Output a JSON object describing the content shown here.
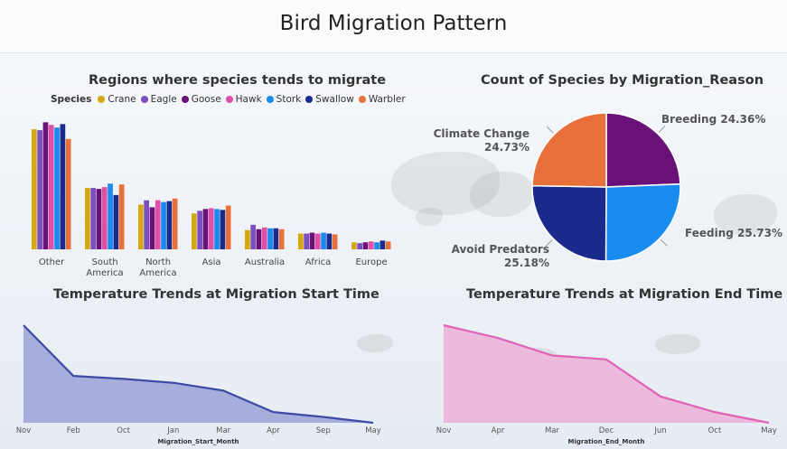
{
  "dashboard_title": "Bird Migration Pattern",
  "colors": {
    "Crane": "#d4a80e",
    "Eagle": "#7b4fbf",
    "Goose": "#6a1178",
    "Hawk": "#e04ea6",
    "Stork": "#1a8cf0",
    "Swallow": "#1a2a8c",
    "Warbler": "#e8703a",
    "area_start_fill": "#a7aedb",
    "area_start_line": "#3e4ba6",
    "area_end_fill": "#ebbadd",
    "area_end_line": "#e063b8"
  },
  "chart_data": [
    {
      "type": "bar",
      "title": "Regions where species tends to migrate",
      "legend_title": "Species",
      "categories": [
        "Other",
        "South America",
        "North America",
        "Asia",
        "Australia",
        "Africa",
        "Europe"
      ],
      "category_lines": [
        [
          "Other"
        ],
        [
          "South",
          "America"
        ],
        [
          "North",
          "America"
        ],
        [
          "Asia"
        ],
        [
          "Australia"
        ],
        [
          "Africa"
        ],
        [
          "Europe"
        ]
      ],
      "series": [
        {
          "name": "Crane",
          "values": [
            137,
            70,
            51,
            41,
            22,
            18,
            8
          ]
        },
        {
          "name": "Eagle",
          "values": [
            136,
            70,
            56,
            44,
            28,
            18,
            7
          ]
        },
        {
          "name": "Goose",
          "values": [
            145,
            69,
            48,
            46,
            23,
            19,
            8
          ]
        },
        {
          "name": "Hawk",
          "values": [
            142,
            71,
            56,
            47,
            25,
            18,
            9
          ]
        },
        {
          "name": "Stork",
          "values": [
            139,
            75,
            54,
            46,
            24,
            19,
            8
          ]
        },
        {
          "name": "Swallow",
          "values": [
            143,
            62,
            55,
            45,
            24,
            18,
            10
          ]
        },
        {
          "name": "Warbler",
          "values": [
            126,
            74,
            58,
            50,
            23,
            17,
            9
          ]
        }
      ],
      "ylim": [
        0,
        150
      ],
      "legend_position": "top"
    },
    {
      "type": "pie",
      "title": "Count of Species by Migration_Reason",
      "slices": [
        {
          "label": "Breeding",
          "value": 24.36,
          "pct_label": "24.36%",
          "color": "#6a1178"
        },
        {
          "label": "Feeding",
          "value": 25.73,
          "pct_label": "25.73%",
          "color": "#1a8cf0"
        },
        {
          "label": "Avoid Predators",
          "value": 25.18,
          "pct_label": "25.18%",
          "color": "#1a2a8c"
        },
        {
          "label": "Climate Change",
          "value": 24.73,
          "pct_label": "24.73%",
          "color": "#e8703a"
        }
      ]
    },
    {
      "type": "area",
      "title": "Temperature Trends at Migration Start Time",
      "xlabel": "Migration_Start_Month",
      "categories": [
        "Nov",
        "Feb",
        "Oct",
        "Jan",
        "Mar",
        "Apr",
        "Sep",
        "May"
      ],
      "values": [
        100,
        48,
        45,
        41,
        33,
        11,
        6,
        0
      ],
      "ylim": [
        0,
        100
      ]
    },
    {
      "type": "area",
      "title": "Temperature Trends at Migration End Time",
      "xlabel": "Migration_End_Month",
      "categories": [
        "Nov",
        "Apr",
        "Mar",
        "Dec",
        "Jun",
        "Oct",
        "May"
      ],
      "values": [
        100,
        87,
        69,
        65,
        27,
        11,
        0
      ],
      "ylim": [
        0,
        100
      ]
    }
  ]
}
